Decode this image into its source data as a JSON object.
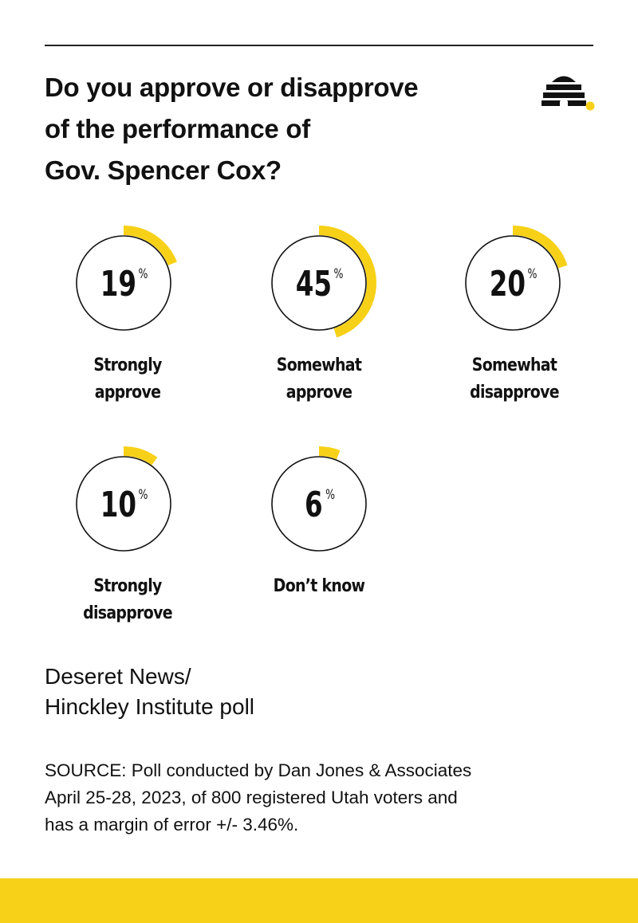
{
  "title_lines": [
    "Do you approve or disapprove",
    "of the performance of",
    "Gov. Spencer Cox?"
  ],
  "logo_icon": "beehive-icon",
  "colors": {
    "accent": "#f7d117",
    "text": "#111111",
    "background": "#ffffff"
  },
  "chart_data": {
    "type": "donut-gauges",
    "unit": "%",
    "items": [
      {
        "value": 19,
        "value_label": "19",
        "label_lines": [
          "Strongly",
          "approve"
        ]
      },
      {
        "value": 45,
        "value_label": "45",
        "label_lines": [
          "Somewhat",
          "approve"
        ]
      },
      {
        "value": 20,
        "value_label": "20",
        "label_lines": [
          "Somewhat",
          "disapprove"
        ]
      },
      {
        "value": 10,
        "value_label": "10",
        "label_lines": [
          "Strongly",
          "disapprove"
        ]
      },
      {
        "value": 6,
        "value_label": "6",
        "label_lines": [
          "Don’t know"
        ]
      }
    ]
  },
  "org_lines": [
    "Deseret News/",
    "Hinckley Institute poll"
  ],
  "source_lines": [
    "SOURCE: Poll conducted by Dan Jones & Associates",
    "April 25-28, 2023, of 800 registered Utah voters and",
    "has a margin of error +/- 3.46%."
  ]
}
